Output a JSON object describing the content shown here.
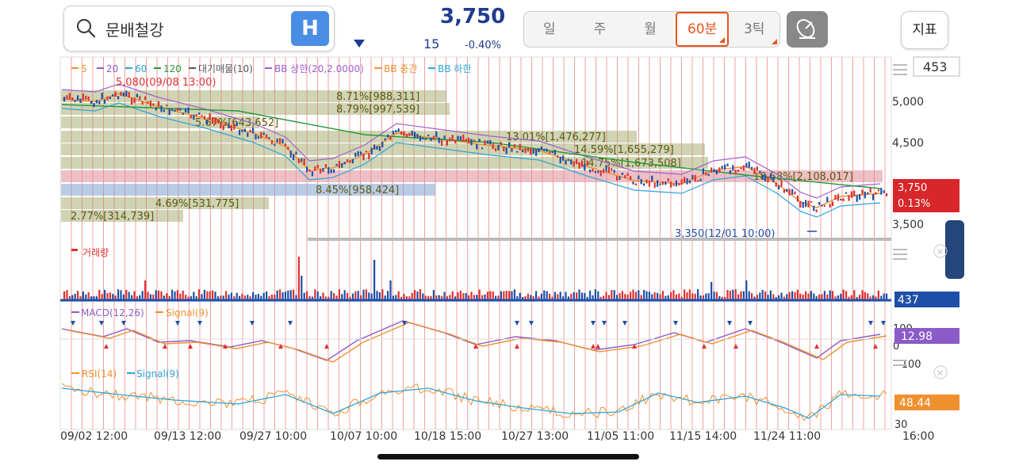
{
  "search": {
    "text": "문배철강",
    "h_label": "H"
  },
  "quote": {
    "price": "3,750",
    "change": "15",
    "change_pct": "-0.40%"
  },
  "periods": [
    "일",
    "주",
    "월",
    "60분",
    "3틱"
  ],
  "active_period": "60분",
  "indicator_button": "지표",
  "count_box": "453",
  "legend": [
    {
      "label": "5",
      "color": "#f0902f"
    },
    {
      "label": "20",
      "color": "#8b5bc7"
    },
    {
      "label": "60",
      "color": "#2ba6d8"
    },
    {
      "label": "120",
      "color": "#239a3c"
    },
    {
      "label": "대기매물(10)",
      "color": "#555"
    },
    {
      "label": "BB 상한(20,2.0000)",
      "color": "#a060d0"
    },
    {
      "label": "BB 중간",
      "color": "#f0902f"
    },
    {
      "label": "BB 하한",
      "color": "#2ba6d8"
    }
  ],
  "annotations": {
    "high": "5,080(09/08 13:00)",
    "low": "3,350(12/01 10:00)"
  },
  "supply_bars": [
    "8.71%[988,311]",
    "8.79%[997,539]",
    "5.67%[643,652]",
    "13.01%[1,476,277]",
    "14.59%[1,655,279]",
    "14.75%[1,673,508]",
    "18.58%[2,108,017]",
    "8.45%[958,424]",
    "4.69%[531,775]",
    "2.77%[314,739]"
  ],
  "price_axis": [
    "5,000",
    "4,500",
    "3,500"
  ],
  "price_tag": {
    "price": "3,750",
    "pct": "0.13%"
  },
  "volume": {
    "label": "거래량",
    "tag": "437"
  },
  "macd": {
    "label": "MACD(12,26)",
    "signal": "Signal(9)",
    "tag": "12.98",
    "axis": [
      "100",
      "0",
      "-100"
    ]
  },
  "rsi": {
    "label": "RSI(14)",
    "signal": "Signal(9)",
    "tag": "48.44",
    "axis": [
      "30"
    ]
  },
  "time_axis": [
    "09/02 12:00",
    "09/13 12:00",
    "09/27 10:00",
    "10/07 10:00",
    "10/18 15:00",
    "10/27 13:00",
    "11/05 11:00",
    "11/15 14:00",
    "11/24 11:00",
    "16:00"
  ],
  "colors": {
    "up": "#e03030",
    "down": "#1e4fa8",
    "accent": "#e8541b",
    "macd": "#8b5bc7",
    "signal": "#f0902f",
    "rsi": "#f0902f",
    "rsi_signal": "#2ba6d8"
  }
}
